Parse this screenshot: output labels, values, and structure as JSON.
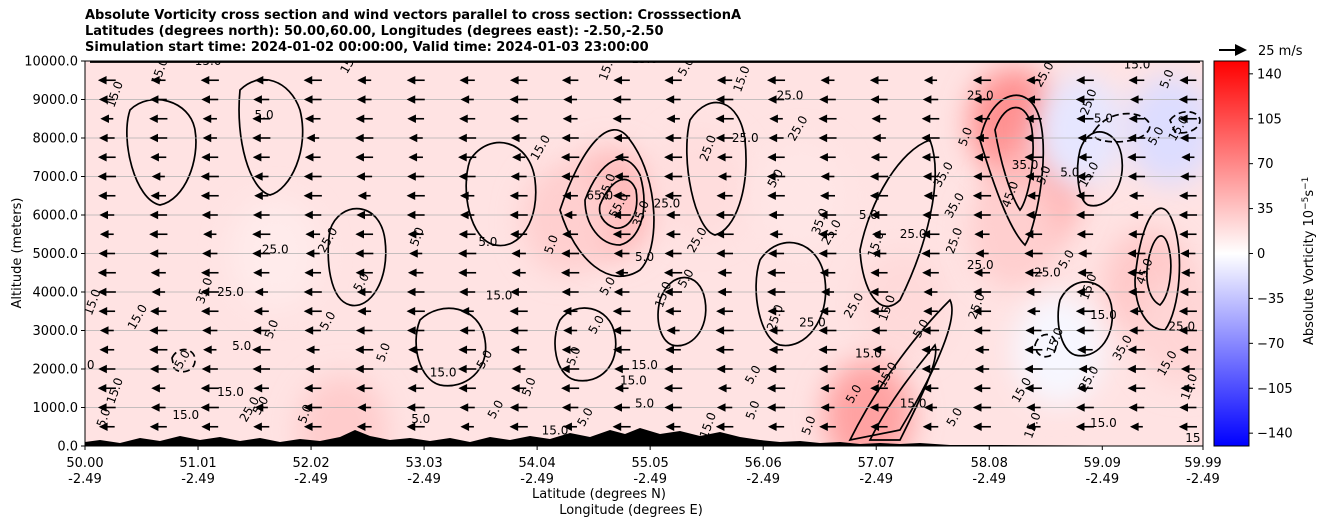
{
  "chart_data": {
    "type": "heatmap",
    "title_lines": [
      "Absolute Vorticity cross section and wind vectors parallel to cross section: CrosssectionA",
      "Latitudes (degrees north): 50.00,60.00, Longitudes (degrees east): -2.50,-2.50",
      "Simulation start time: 2024-01-02 00:00:00, Valid time: 2024-01-03 23:00:00"
    ],
    "ylabel": "Altitude (meters)",
    "xlabel_lines": [
      "Latitude (degrees N)",
      "Longitude (degrees E)"
    ],
    "ylim": [
      0,
      10000
    ],
    "y_ticks": [
      {
        "value": 0,
        "label": "0.0"
      },
      {
        "value": 1000,
        "label": "1000.0"
      },
      {
        "value": 2000,
        "label": "2000.0"
      },
      {
        "value": 3000,
        "label": "3000.0"
      },
      {
        "value": 4000,
        "label": "4000.0"
      },
      {
        "value": 5000,
        "label": "5000.0"
      },
      {
        "value": 6000,
        "label": "6000.0"
      },
      {
        "value": 7000,
        "label": "7000.0"
      },
      {
        "value": 8000,
        "label": "8000.0"
      },
      {
        "value": 9000,
        "label": "9000.0"
      },
      {
        "value": 10000,
        "label": "10000.0"
      }
    ],
    "xlim": [
      50.0,
      59.99
    ],
    "x_ticks": [
      {
        "value": 50.0,
        "lat": "50.00",
        "lon": "-2.49"
      },
      {
        "value": 51.01,
        "lat": "51.01",
        "lon": "-2.49"
      },
      {
        "value": 52.02,
        "lat": "52.02",
        "lon": "-2.49"
      },
      {
        "value": 53.03,
        "lat": "53.03",
        "lon": "-2.49"
      },
      {
        "value": 54.04,
        "lat": "54.04",
        "lon": "-2.49"
      },
      {
        "value": 55.05,
        "lat": "55.05",
        "lon": "-2.49"
      },
      {
        "value": 56.06,
        "lat": "56.06",
        "lon": "-2.49"
      },
      {
        "value": 57.07,
        "lat": "57.07",
        "lon": "-2.49"
      },
      {
        "value": 58.08,
        "lat": "58.08",
        "lon": "-2.49"
      },
      {
        "value": 59.09,
        "lat": "59.09",
        "lon": "-2.49"
      },
      {
        "value": 59.99,
        "lat": "59.99",
        "lon": "-2.49"
      }
    ],
    "grid": "horizontal",
    "colorbar": {
      "label": "Absolute Vorticity 10$^{-5}$s$^{-1}$",
      "label_main": "Absolute Vorticity 10",
      "label_exp1": "−5",
      "label_unit": "s",
      "label_exp2": "−1",
      "range": [
        -150,
        150
      ],
      "colormap": "bwr",
      "colors": {
        "low": "#0000ff",
        "mid": "#ffffff",
        "high": "#ff0000"
      },
      "ticks": [
        {
          "value": 140,
          "label": "140"
        },
        {
          "value": 105,
          "label": "105"
        },
        {
          "value": 70,
          "label": "70"
        },
        {
          "value": 35,
          "label": "35"
        },
        {
          "value": 0,
          "label": "0"
        },
        {
          "value": -35,
          "label": "−35"
        },
        {
          "value": -70,
          "label": "−70"
        },
        {
          "value": -105,
          "label": "−105"
        },
        {
          "value": -140,
          "label": "−140"
        }
      ]
    },
    "quiver_key": {
      "label": "25 m/s",
      "speed_ms": 25
    },
    "wind_vectors": {
      "direction": "westward (negative along-section)",
      "approx_speed_ms": 15
    },
    "vorticity_blobs": [
      {
        "lat": 51.7,
        "alt": 5000,
        "value": 12
      },
      {
        "lat": 54.7,
        "alt": 6300,
        "value": 40
      },
      {
        "lat": 54.3,
        "alt": 5900,
        "value": 28
      },
      {
        "lat": 55.5,
        "alt": 6800,
        "value": 20
      },
      {
        "lat": 57.3,
        "alt": 3700,
        "value": 22
      },
      {
        "lat": 57.0,
        "alt": 800,
        "value": 55
      },
      {
        "lat": 58.3,
        "alt": 8400,
        "value": 65
      },
      {
        "lat": 58.5,
        "alt": 6600,
        "value": 45
      },
      {
        "lat": 58.3,
        "alt": 5500,
        "value": 28
      },
      {
        "lat": 59.5,
        "alt": 4200,
        "value": 32
      },
      {
        "lat": 59.8,
        "alt": 3000,
        "value": 25
      },
      {
        "lat": 56.4,
        "alt": 6500,
        "value": 15
      },
      {
        "lat": 52.3,
        "alt": 400,
        "value": 30
      },
      {
        "lat": 58.9,
        "alt": 8200,
        "value": -15
      },
      {
        "lat": 59.7,
        "alt": 8200,
        "value": -20
      },
      {
        "lat": 58.7,
        "alt": 2500,
        "value": -5
      }
    ],
    "contour_labels": [
      {
        "lat": 50.7,
        "alt": 9700,
        "text": "15.0"
      },
      {
        "lat": 51.1,
        "alt": 9900,
        "text": "15.0"
      },
      {
        "lat": 52.4,
        "alt": 9950,
        "text": "15.0"
      },
      {
        "lat": 50.3,
        "alt": 9100,
        "text": "15.0"
      },
      {
        "lat": 51.6,
        "alt": 8500,
        "text": "5.0"
      },
      {
        "lat": 54.1,
        "alt": 7700,
        "text": "15.0"
      },
      {
        "lat": 54.7,
        "alt": 9800,
        "text": "15.0"
      },
      {
        "lat": 55.0,
        "alt": 9950,
        "text": "15.0"
      },
      {
        "lat": 55.4,
        "alt": 9800,
        "text": "5.0"
      },
      {
        "lat": 55.9,
        "alt": 9500,
        "text": "15.0"
      },
      {
        "lat": 56.3,
        "alt": 9000,
        "text": "25.0"
      },
      {
        "lat": 56.4,
        "alt": 8200,
        "text": "25.0"
      },
      {
        "lat": 55.6,
        "alt": 7700,
        "text": "25.0"
      },
      {
        "lat": 55.9,
        "alt": 7900,
        "text": "25.0"
      },
      {
        "lat": 56.2,
        "alt": 6900,
        "text": "5.0"
      },
      {
        "lat": 54.7,
        "alt": 6700,
        "text": "25.0"
      },
      {
        "lat": 54.6,
        "alt": 6400,
        "text": "65.0"
      },
      {
        "lat": 54.8,
        "alt": 6200,
        "text": "55.0"
      },
      {
        "lat": 55.0,
        "alt": 6000,
        "text": "35.0"
      },
      {
        "lat": 55.2,
        "alt": 6200,
        "text": "25.0"
      },
      {
        "lat": 55.5,
        "alt": 5300,
        "text": "25.0"
      },
      {
        "lat": 54.2,
        "alt": 5200,
        "text": "5.0"
      },
      {
        "lat": 55.0,
        "alt": 4800,
        "text": "5.0"
      },
      {
        "lat": 55.4,
        "alt": 4300,
        "text": "5.0"
      },
      {
        "lat": 55.2,
        "alt": 3900,
        "text": "15.0"
      },
      {
        "lat": 51.7,
        "alt": 5000,
        "text": "25.0"
      },
      {
        "lat": 52.2,
        "alt": 5300,
        "text": "25.0"
      },
      {
        "lat": 51.1,
        "alt": 4000,
        "text": "35.0"
      },
      {
        "lat": 51.3,
        "alt": 3900,
        "text": "25.0"
      },
      {
        "lat": 52.5,
        "alt": 4200,
        "text": "5.0"
      },
      {
        "lat": 53.0,
        "alt": 5400,
        "text": "5.0"
      },
      {
        "lat": 53.6,
        "alt": 5200,
        "text": "5.0"
      },
      {
        "lat": 52.2,
        "alt": 3200,
        "text": "5.0"
      },
      {
        "lat": 51.7,
        "alt": 3000,
        "text": "5.0"
      },
      {
        "lat": 51.4,
        "alt": 2500,
        "text": "5.0"
      },
      {
        "lat": 50.5,
        "alt": 3300,
        "text": "15.0"
      },
      {
        "lat": 50.1,
        "alt": 3700,
        "text": "15.0"
      },
      {
        "lat": 50.0,
        "alt": 2000,
        "text": "5.0"
      },
      {
        "lat": 50.9,
        "alt": 2200,
        "text": "5.0"
      },
      {
        "lat": 52.7,
        "alt": 2400,
        "text": "5.0"
      },
      {
        "lat": 53.7,
        "alt": 3800,
        "text": "15.0"
      },
      {
        "lat": 54.7,
        "alt": 4100,
        "text": "5.0"
      },
      {
        "lat": 54.4,
        "alt": 2300,
        "text": "5.0"
      },
      {
        "lat": 55.0,
        "alt": 2000,
        "text": "15.0"
      },
      {
        "lat": 54.6,
        "alt": 3100,
        "text": "5.0"
      },
      {
        "lat": 50.3,
        "alt": 1400,
        "text": "15.0"
      },
      {
        "lat": 51.3,
        "alt": 1300,
        "text": "15.0"
      },
      {
        "lat": 51.6,
        "alt": 1000,
        "text": "5.0"
      },
      {
        "lat": 50.2,
        "alt": 700,
        "text": "5.0"
      },
      {
        "lat": 53.2,
        "alt": 1800,
        "text": "15.0"
      },
      {
        "lat": 53.6,
        "alt": 2200,
        "text": "5.0"
      },
      {
        "lat": 54.0,
        "alt": 1500,
        "text": "5.0"
      },
      {
        "lat": 54.9,
        "alt": 1600,
        "text": "15.0"
      },
      {
        "lat": 56.0,
        "alt": 1800,
        "text": "5.0"
      },
      {
        "lat": 56.2,
        "alt": 3300,
        "text": "25.0"
      },
      {
        "lat": 56.5,
        "alt": 3100,
        "text": "25.0"
      },
      {
        "lat": 56.9,
        "alt": 3600,
        "text": "25.0"
      },
      {
        "lat": 57.2,
        "alt": 3550,
        "text": "15.0"
      },
      {
        "lat": 57.0,
        "alt": 2300,
        "text": "15.0"
      },
      {
        "lat": 57.2,
        "alt": 1800,
        "text": "15.0"
      },
      {
        "lat": 57.1,
        "alt": 5200,
        "text": "15.0"
      },
      {
        "lat": 57.4,
        "alt": 5400,
        "text": "25.0"
      },
      {
        "lat": 56.7,
        "alt": 5500,
        "text": "25.0"
      },
      {
        "lat": 56.6,
        "alt": 5800,
        "text": "35.0"
      },
      {
        "lat": 57.0,
        "alt": 5900,
        "text": "5.0"
      },
      {
        "lat": 57.5,
        "alt": 3000,
        "text": "5.0"
      },
      {
        "lat": 58.0,
        "alt": 3600,
        "text": "25.0"
      },
      {
        "lat": 58.0,
        "alt": 4600,
        "text": "25.0"
      },
      {
        "lat": 57.8,
        "alt": 6200,
        "text": "35.0"
      },
      {
        "lat": 57.9,
        "alt": 8000,
        "text": "5.0"
      },
      {
        "lat": 58.0,
        "alt": 9000,
        "text": "25.0"
      },
      {
        "lat": 58.6,
        "alt": 9600,
        "text": "25.0"
      },
      {
        "lat": 59.0,
        "alt": 8900,
        "text": "25.0"
      },
      {
        "lat": 59.4,
        "alt": 9800,
        "text": "15.0"
      },
      {
        "lat": 59.8,
        "alt": 8200,
        "text": "15.0"
      },
      {
        "lat": 59.7,
        "alt": 9500,
        "text": "5.0"
      },
      {
        "lat": 59.1,
        "alt": 8400,
        "text": "5.0"
      },
      {
        "lat": 59.6,
        "alt": 8000,
        "text": "5.0"
      },
      {
        "lat": 58.6,
        "alt": 7000,
        "text": "5.0"
      },
      {
        "lat": 58.8,
        "alt": 7000,
        "text": "5.0"
      },
      {
        "lat": 59.0,
        "alt": 7000,
        "text": "15.0"
      },
      {
        "lat": 58.3,
        "alt": 6500,
        "text": "45.0"
      },
      {
        "lat": 58.4,
        "alt": 7200,
        "text": "35.0"
      },
      {
        "lat": 57.7,
        "alt": 7000,
        "text": "35.0"
      },
      {
        "lat": 57.8,
        "alt": 5300,
        "text": "25.0"
      },
      {
        "lat": 58.6,
        "alt": 4400,
        "text": "25.0"
      },
      {
        "lat": 58.8,
        "alt": 4800,
        "text": "5.0"
      },
      {
        "lat": 59.0,
        "alt": 4100,
        "text": "15.0"
      },
      {
        "lat": 59.1,
        "alt": 3300,
        "text": "15.0"
      },
      {
        "lat": 59.3,
        "alt": 2500,
        "text": "35.0"
      },
      {
        "lat": 59.5,
        "alt": 4500,
        "text": "45.0"
      },
      {
        "lat": 59.8,
        "alt": 3000,
        "text": "25.0"
      },
      {
        "lat": 59.7,
        "alt": 2100,
        "text": "15.0"
      },
      {
        "lat": 59.9,
        "alt": 1500,
        "text": "15.0"
      },
      {
        "lat": 59.9,
        "alt": 100,
        "text": "15"
      },
      {
        "lat": 59.0,
        "alt": 1700,
        "text": "25.0"
      },
      {
        "lat": 58.5,
        "alt": 500,
        "text": "15.0"
      },
      {
        "lat": 59.1,
        "alt": 500,
        "text": "15.0"
      },
      {
        "lat": 58.4,
        "alt": 1400,
        "text": "15.0"
      },
      {
        "lat": 58.7,
        "alt": 2700,
        "text": "15.0"
      },
      {
        "lat": 57.4,
        "alt": 1000,
        "text": "15.0"
      },
      {
        "lat": 57.8,
        "alt": 700,
        "text": "5.0"
      },
      {
        "lat": 56.0,
        "alt": 900,
        "text": "5.0"
      },
      {
        "lat": 55.0,
        "alt": 1000,
        "text": "5.0"
      },
      {
        "lat": 53.7,
        "alt": 900,
        "text": "5.0"
      },
      {
        "lat": 52.0,
        "alt": 800,
        "text": "5.0"
      },
      {
        "lat": 53.0,
        "alt": 600,
        "text": "5.0"
      },
      {
        "lat": 54.5,
        "alt": 700,
        "text": "5.0"
      },
      {
        "lat": 56.5,
        "alt": 500,
        "text": "5.0"
      },
      {
        "lat": 50.9,
        "alt": 700,
        "text": "15.0"
      },
      {
        "lat": 51.5,
        "alt": 900,
        "text": "25.0"
      },
      {
        "lat": 55.6,
        "alt": 500,
        "text": "15.0"
      },
      {
        "lat": 54.2,
        "alt": 300,
        "text": "15.0"
      },
      {
        "lat": 56.9,
        "alt": 1300,
        "text": "5.0"
      }
    ]
  }
}
